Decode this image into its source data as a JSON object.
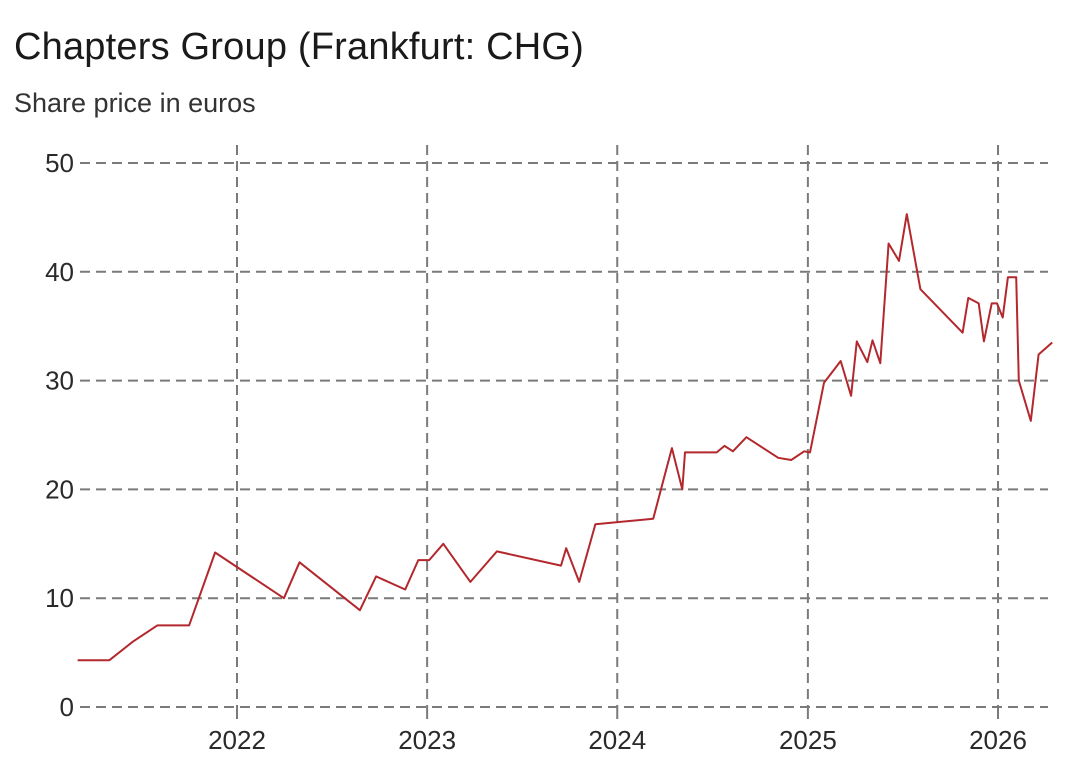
{
  "header": {
    "title": "Chapters Group (Frankfurt: CHG)",
    "subtitle": "Share price in euros"
  },
  "chart_data": {
    "type": "line",
    "title": "Chapters Group (Frankfurt: CHG)",
    "subtitle": "Share price in euros",
    "xlabel": "",
    "ylabel": "",
    "ylim": [
      0,
      50
    ],
    "xlim": [
      "2021-03-01",
      "2026-04-15"
    ],
    "y_ticks": [
      0,
      10,
      20,
      30,
      40,
      50
    ],
    "x_ticks": [
      {
        "label": "2022",
        "date": "2022-01-01"
      },
      {
        "label": "2023",
        "date": "2023-01-01"
      },
      {
        "label": "2024",
        "date": "2024-01-01"
      },
      {
        "label": "2025",
        "date": "2025-01-01"
      },
      {
        "label": "2026",
        "date": "2026-01-01"
      }
    ],
    "grid": true,
    "line_color": "#b3282d",
    "grid_color": "#7a7a7a",
    "series": [
      {
        "x": [
          "2021-03-01",
          "2021-05-01",
          "2021-06-15",
          "2021-08-01",
          "2021-10-01",
          "2021-11-20",
          "2022-04-01",
          "2022-05-01",
          "2022-08-25",
          "2022-09-25",
          "2022-11-20",
          "2022-12-15",
          "2023-01-05",
          "2023-02-01",
          "2023-03-25",
          "2023-05-15",
          "2023-09-15",
          "2023-09-25",
          "2023-10-20",
          "2023-11-20",
          "2024-03-10",
          "2024-04-15",
          "2024-05-05",
          "2024-05-10",
          "2024-07-10",
          "2024-07-25",
          "2024-08-10",
          "2024-09-05",
          "2024-11-05",
          "2024-11-30",
          "2024-12-25",
          "2025-01-05",
          "2025-02-01",
          "2025-03-05",
          "2025-03-25",
          "2025-04-05",
          "2025-04-25",
          "2025-05-05",
          "2025-05-20",
          "2025-06-05",
          "2025-06-25",
          "2025-07-10",
          "2025-08-05",
          "2025-10-25",
          "2025-11-05",
          "2025-11-25",
          "2025-12-05",
          "2025-12-20",
          "2025-12-30",
          "2026-01-10",
          "2026-01-20",
          "2026-02-05",
          "2026-02-10",
          "2026-03-05",
          "2026-03-20",
          "2026-04-15"
        ],
        "values": [
          4.3,
          4.3,
          6.0,
          7.5,
          7.5,
          14.2,
          10.0,
          13.3,
          8.9,
          12.0,
          10.8,
          13.5,
          13.5,
          15.0,
          11.5,
          14.3,
          13.0,
          14.6,
          11.5,
          16.8,
          17.3,
          23.8,
          20.0,
          23.4,
          23.4,
          24.0,
          23.5,
          24.8,
          22.9,
          22.7,
          23.5,
          23.4,
          29.8,
          31.8,
          28.6,
          33.6,
          31.7,
          33.7,
          31.6,
          42.6,
          41.0,
          45.3,
          38.4,
          34.4,
          37.6,
          37.1,
          33.6,
          37.1,
          37.1,
          35.8,
          39.5,
          39.5,
          30.0,
          26.3,
          32.4,
          33.5
        ]
      }
    ]
  }
}
